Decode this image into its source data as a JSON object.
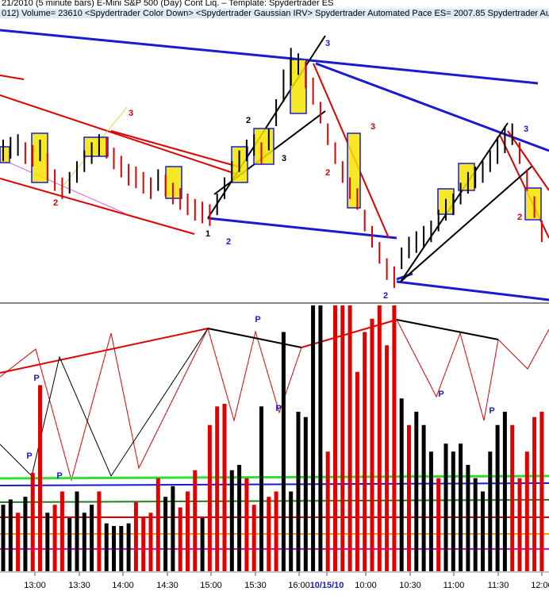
{
  "header": {
    "line1": "21/2010  (5 minute bars)   E-Mini S&P 500 (Day) Cont Liq.  –  Template: Spydertrader ES",
    "line2": "012)  Volume= 23610  <Spydertrader Color Down>  <Spydertrader Gaussian IRV>  Spydertrader Automated Pace ES= 2007.85  Spydertrader Autom"
  },
  "chart_data": [
    {
      "type": "ohlc",
      "high": [
        60,
        61,
        62,
        59,
        58,
        60,
        55,
        49,
        46,
        48,
        52,
        56,
        59,
        62,
        61,
        57,
        54,
        51,
        50,
        48,
        46,
        49,
        47,
        44,
        42,
        40,
        38,
        37,
        36,
        40,
        46,
        52,
        56,
        60,
        62,
        59,
        64,
        75,
        86,
        94,
        92,
        89,
        83,
        74,
        66,
        59,
        52,
        46,
        42,
        34,
        28,
        22,
        16,
        13,
        20,
        24,
        26,
        28,
        30,
        34,
        38,
        40,
        44,
        48,
        50,
        52,
        56,
        61,
        65,
        66,
        59,
        49,
        39,
        30
      ],
      "low": [
        52,
        53,
        54,
        51,
        50,
        52,
        45,
        41,
        38,
        40,
        44,
        48,
        51,
        54,
        53,
        49,
        46,
        43,
        42,
        40,
        38,
        41,
        39,
        36,
        34,
        32,
        30,
        29,
        28,
        32,
        38,
        44,
        48,
        52,
        54,
        51,
        56,
        65,
        74,
        80,
        84,
        79,
        73,
        66,
        58,
        51,
        44,
        38,
        34,
        26,
        20,
        14,
        8,
        5,
        12,
        16,
        18,
        20,
        22,
        26,
        30,
        32,
        36,
        40,
        42,
        44,
        48,
        51,
        55,
        58,
        51,
        41,
        31,
        22
      ],
      "colors": [
        "#000000",
        "#000000",
        "#000000",
        "#e00000",
        "#e00000",
        "#000000",
        "#e00000",
        "#e00000",
        "#e00000",
        "#000000",
        "#000000",
        "#000000",
        "#000000",
        "#000000",
        "#e00000",
        "#e00000",
        "#e00000",
        "#e00000",
        "#e00000",
        "#e00000",
        "#e00000",
        "#000000",
        "#e00000",
        "#e00000",
        "#e00000",
        "#e00000",
        "#e00000",
        "#e00000",
        "#e00000",
        "#000000",
        "#000000",
        "#000000",
        "#000000",
        "#000000",
        "#000000",
        "#e00000",
        "#000000",
        "#000000",
        "#000000",
        "#000000",
        "#000000",
        "#e00000",
        "#e00000",
        "#e00000",
        "#e00000",
        "#e00000",
        "#e00000",
        "#e00000",
        "#e00000",
        "#e00000",
        "#e00000",
        "#e00000",
        "#e00000",
        "#e00000",
        "#000000",
        "#000000",
        "#000000",
        "#000000",
        "#000000",
        "#000000",
        "#000000",
        "#000000",
        "#000000",
        "#000000",
        "#000000",
        "#000000",
        "#000000",
        "#000000",
        "#000000",
        "#000000",
        "#e00000",
        "#e00000",
        "#e00000",
        "#e00000"
      ],
      "ylim": [
        0,
        100
      ]
    },
    {
      "type": "bar",
      "values": [
        25,
        27,
        22,
        28,
        37,
        70,
        22,
        25,
        30,
        20,
        30,
        22,
        25,
        30,
        18,
        17,
        17,
        18,
        26,
        20,
        22,
        35,
        28,
        32,
        24,
        30,
        38,
        20,
        55,
        62,
        63,
        38,
        40,
        35,
        25,
        62,
        28,
        30,
        90,
        30,
        60,
        58,
        100,
        100,
        45,
        100,
        100,
        100,
        75,
        90,
        95,
        100,
        85,
        100,
        65,
        55,
        60,
        55,
        45,
        35,
        48,
        45,
        48,
        40,
        35,
        30,
        45,
        55,
        60,
        55,
        35,
        45,
        58,
        60
      ],
      "colors": [
        "#000000",
        "#000000",
        "#e00000",
        "#000000",
        "#e00000",
        "#e00000",
        "#000000",
        "#e00000",
        "#e00000",
        "#000000",
        "#000000",
        "#000000",
        "#000000",
        "#e00000",
        "#000000",
        "#000000",
        "#000000",
        "#000000",
        "#e00000",
        "#e00000",
        "#e00000",
        "#e00000",
        "#000000",
        "#000000",
        "#e00000",
        "#e00000",
        "#e00000",
        "#000000",
        "#e00000",
        "#e00000",
        "#e00000",
        "#000000",
        "#000000",
        "#e00000",
        "#e00000",
        "#000000",
        "#e00000",
        "#e00000",
        "#000000",
        "#000000",
        "#000000",
        "#000000",
        "#000000",
        "#000000",
        "#e00000",
        "#e00000",
        "#e00000",
        "#e00000",
        "#e00000",
        "#e00000",
        "#e00000",
        "#e00000",
        "#e00000",
        "#e00000",
        "#000000",
        "#e00000",
        "#000000",
        "#000000",
        "#000000",
        "#e00000",
        "#000000",
        "#000000",
        "#000000",
        "#000000",
        "#000000",
        "#000000",
        "#000000",
        "#000000",
        "#000000",
        "#e00000",
        "#e00000",
        "#e00000",
        "#e00000",
        "#e00000"
      ],
      "ylim": [
        0,
        100
      ]
    }
  ],
  "time_labels": [
    "13:00",
    "13:30",
    "14:00",
    "14:30",
    "15:00",
    "15:30",
    "16:00",
    "10/15/10",
    "10:00",
    "10:30",
    "11:00",
    "11:30",
    "12:00"
  ],
  "annotations": [
    {
      "text": "3",
      "color": "#1a1ad0"
    },
    {
      "text": "2",
      "color": "#1a1ad0"
    },
    {
      "text": "2",
      "color": "#1a1ad0"
    },
    {
      "text": "3",
      "color": "#1a1ad0"
    },
    {
      "text": "1",
      "color": "#000000"
    },
    {
      "text": "2",
      "color": "#000000"
    },
    {
      "text": "3",
      "color": "#000000"
    },
    {
      "text": "3",
      "color": "#e00000"
    },
    {
      "text": "2",
      "color": "#e00000"
    },
    {
      "text": "3",
      "color": "#e00000"
    },
    {
      "text": "2",
      "color": "#e00000"
    },
    {
      "text": "2",
      "color": "#e00000"
    },
    {
      "text": "P",
      "color": "#1a1ad0"
    },
    {
      "text": "P",
      "color": "#1a1ad0"
    },
    {
      "text": "P",
      "color": "#1a1ad0"
    },
    {
      "text": "P",
      "color": "#1a1ad0"
    },
    {
      "text": "P",
      "color": "#1a1ad0"
    },
    {
      "text": "P",
      "color": "#1a1ad0"
    },
    {
      "text": "P",
      "color": "#1a1ad0"
    }
  ]
}
